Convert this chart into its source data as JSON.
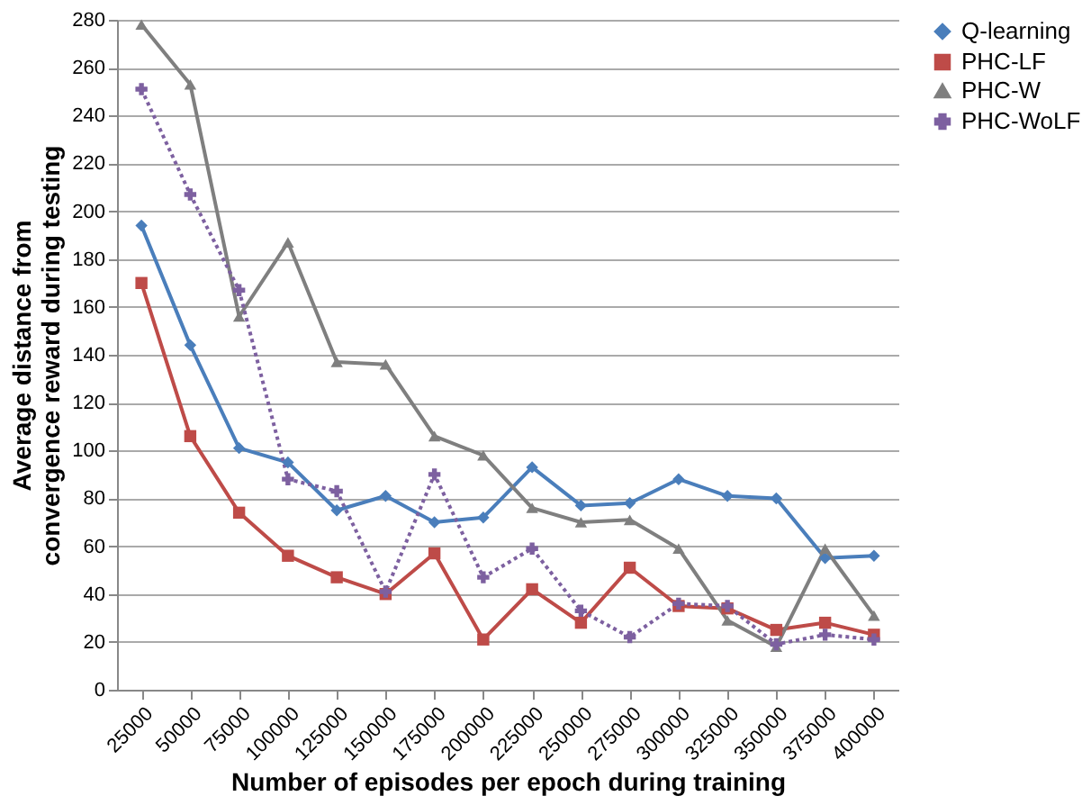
{
  "chart_data": {
    "type": "line",
    "xlabel": "Number of episodes per epoch during training",
    "ylabel": "Average distance from convergence reward during testing",
    "categories": [
      "25000",
      "50000",
      "75000",
      "100000",
      "125000",
      "150000",
      "175000",
      "200000",
      "225000",
      "250000",
      "275000",
      "300000",
      "325000",
      "350000",
      "375000",
      "400000"
    ],
    "series": [
      {
        "name": "Q-learning",
        "color": "#4a7ebb",
        "marker": "diamond",
        "line_style": "solid",
        "values": [
          194,
          144,
          101,
          95,
          75,
          81,
          70,
          72,
          93,
          77,
          78,
          88,
          81,
          80,
          55,
          56
        ]
      },
      {
        "name": "PHC-LF",
        "color": "#be4b48",
        "marker": "square",
        "line_style": "solid",
        "values": [
          170,
          106,
          74,
          56,
          47,
          40,
          57,
          21,
          42,
          28,
          51,
          35,
          34,
          25,
          28,
          23
        ]
      },
      {
        "name": "PHC-W",
        "color": "#7f7f7f",
        "marker": "triangle",
        "line_style": "solid",
        "values": [
          278,
          253,
          156,
          187,
          137,
          136,
          106,
          98,
          76,
          70,
          71,
          59,
          29,
          18,
          59,
          31
        ]
      },
      {
        "name": "PHC-WoLF",
        "color": "#7d60a0",
        "marker": "cross",
        "line_style": "dotted",
        "values": [
          251,
          207,
          167,
          88,
          83,
          41,
          90,
          47,
          59,
          33,
          22,
          36,
          35,
          19,
          23,
          21
        ]
      }
    ],
    "ylim": [
      0,
      280
    ],
    "yticks": [
      0,
      20,
      40,
      60,
      80,
      100,
      120,
      140,
      160,
      180,
      200,
      220,
      240,
      260,
      280
    ],
    "grid": "y",
    "legend": "right"
  }
}
